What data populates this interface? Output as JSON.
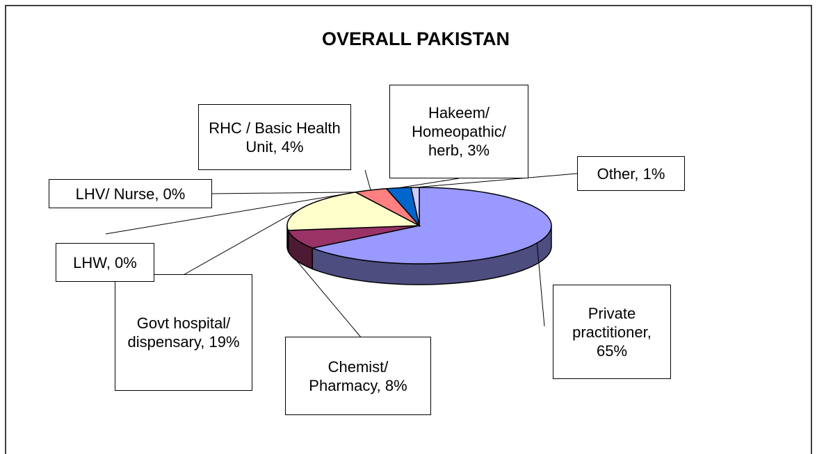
{
  "chart_data": {
    "type": "pie",
    "title": "OVERALL PAKISTAN",
    "values": [
      65,
      8,
      19,
      0,
      0,
      4,
      3,
      1
    ],
    "value_labels": [
      "Private practitioner, 65%",
      "Chemist/ Pharmacy, 8%",
      "Govt hospital/ dispensary, 19%",
      "LHW, 0%",
      "LHV/ Nurse, 0%",
      "RHC / Basic Health Unit, 4%",
      "Hakeem/ Homeopathic/ herb, 3%",
      "Other, 1%"
    ],
    "colors": [
      "#9999ff",
      "#993366",
      "#ffffcc",
      "#ccffff",
      "#660066",
      "#ff8080",
      "#0066cc",
      "#ccccff"
    ]
  }
}
